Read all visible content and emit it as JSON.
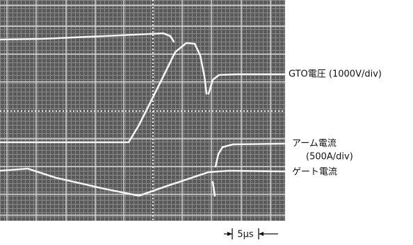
{
  "labels": {
    "gto_voltage": "GTO電圧 (1000V/div)",
    "arm_current": "アーム電流",
    "arm_current_scale": "(500A/div)",
    "gate_current": "ゲート電流",
    "time_scale": "5μs"
  }
}
